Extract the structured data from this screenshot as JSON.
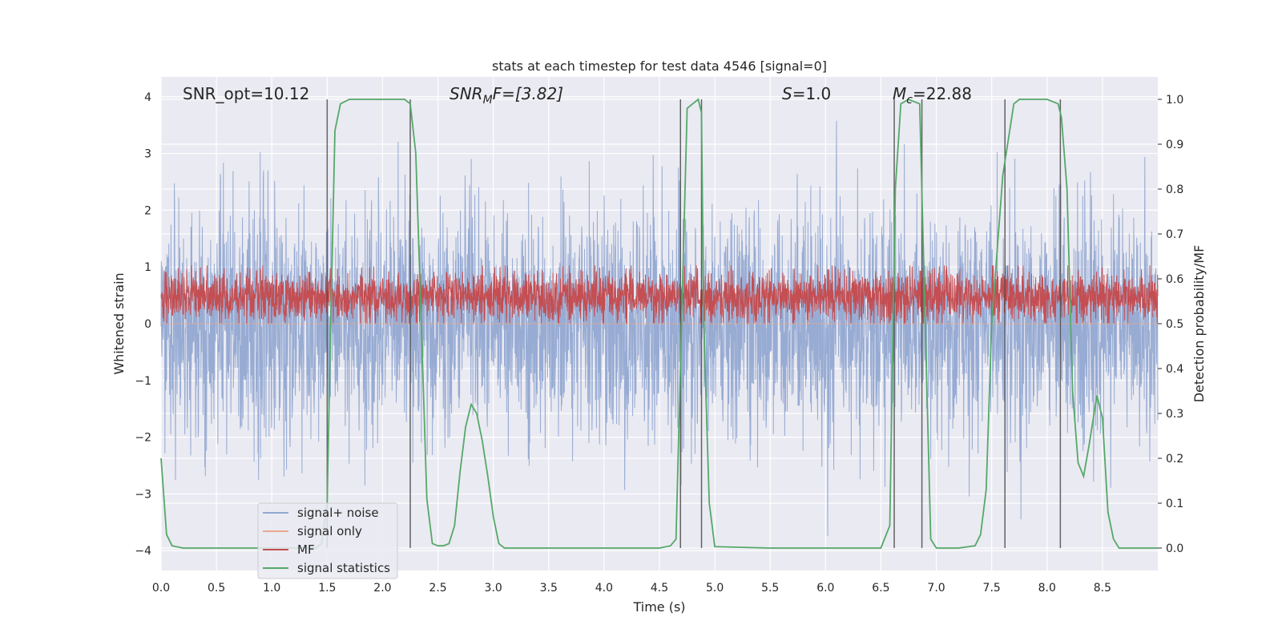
{
  "chart_data": {
    "type": "line",
    "title": "stats at each timestep for test data 4546 [signal=0]",
    "xlabel": "Time (s)",
    "ylabel_left": "Whitened strain",
    "ylabel_right": "Detection probability/MF",
    "xlim": [
      0,
      9.0
    ],
    "ylim_left": [
      -4.35,
      4.35
    ],
    "ylim_right": [
      -0.05,
      1.05
    ],
    "xticks": [
      0.0,
      0.5,
      1.0,
      1.5,
      2.0,
      2.5,
      3.0,
      3.5,
      4.0,
      4.5,
      5.0,
      5.5,
      6.0,
      6.5,
      7.0,
      7.5,
      8.0,
      8.5
    ],
    "xtick_labels": [
      "0.0",
      "0.5",
      "1.0",
      "1.5",
      "2.0",
      "2.5",
      "3.0",
      "3.5",
      "4.0",
      "4.5",
      "5.0",
      "5.5",
      "6.0",
      "6.5",
      "7.0",
      "7.5",
      "8.0",
      "8.5"
    ],
    "yticks_left": [
      -4,
      -3,
      -2,
      -1,
      0,
      1,
      2,
      3,
      4
    ],
    "ytick_labels_left": [
      "−4",
      "−3",
      "−2",
      "−1",
      "0",
      "1",
      "2",
      "3",
      "4"
    ],
    "yticks_right": [
      0.0,
      0.1,
      0.2,
      0.3,
      0.4,
      0.5,
      0.6,
      0.7,
      0.8,
      0.9,
      1.0
    ],
    "ytick_labels_right": [
      "0.0",
      "0.1",
      "0.2",
      "0.3",
      "0.4",
      "0.5",
      "0.6",
      "0.7",
      "0.8",
      "0.9",
      "1.0"
    ],
    "grid": true,
    "legend_position": "lower-left",
    "annotations": {
      "snr_opt": "SNR_opt=10.12",
      "snr_mf_main": "SNR",
      "snr_mf_sub": "M",
      "snr_mf_rest": "F=[3.82]",
      "s_main": "S",
      "s_rest": "=1.0",
      "mc_main": "M",
      "mc_sub": "c",
      "mc_rest": "=22.88"
    },
    "series": [
      {
        "name": "signal+ noise",
        "color": "#92a8d1",
        "axis": "left",
        "kind": "noise",
        "envelope_typical": [
          -1.6,
          1.6
        ],
        "envelope_extreme": [
          -3.9,
          4.0
        ]
      },
      {
        "name": "signal only",
        "color": "#e8a98e",
        "axis": "left",
        "kind": "flat",
        "values": [
          0.0,
          0.0
        ]
      },
      {
        "name": "MF",
        "color": "#c44e52",
        "axis": "right",
        "kind": "noise",
        "envelope_typical": [
          0.52,
          0.6
        ],
        "envelope_extreme": [
          0.5,
          0.63
        ]
      },
      {
        "name": "signal statistics",
        "color": "#55a868",
        "axis": "right",
        "kind": "line",
        "x": [
          0.0,
          0.05,
          0.1,
          0.2,
          0.3,
          0.5,
          1.0,
          1.4,
          1.45,
          1.5,
          1.53,
          1.57,
          1.62,
          1.7,
          2.0,
          2.2,
          2.25,
          2.3,
          2.35,
          2.4,
          2.45,
          2.5,
          2.55,
          2.6,
          2.65,
          2.7,
          2.75,
          2.8,
          2.85,
          2.9,
          2.95,
          3.0,
          3.05,
          3.1,
          3.15,
          3.2,
          3.5,
          4.0,
          4.5,
          4.6,
          4.65,
          4.7,
          4.75,
          4.8,
          4.85,
          4.88,
          4.9,
          4.95,
          5.0,
          5.5,
          6.0,
          6.5,
          6.58,
          6.63,
          6.68,
          6.75,
          6.8,
          6.85,
          6.9,
          6.95,
          7.0,
          7.05,
          7.2,
          7.35,
          7.4,
          7.45,
          7.5,
          7.6,
          7.7,
          7.75,
          7.8,
          8.0,
          8.1,
          8.13,
          8.18,
          8.23,
          8.28,
          8.33,
          8.38,
          8.45,
          8.5,
          8.55,
          8.6,
          8.65,
          8.7,
          9.0
        ],
        "values": [
          0.2,
          0.03,
          0.005,
          0.0,
          0.0,
          0.0,
          0.0,
          0.0,
          0.01,
          0.1,
          0.48,
          0.93,
          0.99,
          1.0,
          1.0,
          1.0,
          0.99,
          0.88,
          0.5,
          0.11,
          0.01,
          0.005,
          0.005,
          0.01,
          0.05,
          0.17,
          0.27,
          0.32,
          0.3,
          0.24,
          0.16,
          0.07,
          0.01,
          0.0,
          0.0,
          0.0,
          0.0,
          0.0,
          0.0,
          0.005,
          0.02,
          0.5,
          0.98,
          0.99,
          1.0,
          0.97,
          0.5,
          0.1,
          0.003,
          0.0,
          0.0,
          0.0,
          0.05,
          0.8,
          0.99,
          1.0,
          0.995,
          0.99,
          0.5,
          0.02,
          0.0,
          0.0,
          0.0,
          0.005,
          0.03,
          0.13,
          0.5,
          0.83,
          0.99,
          1.0,
          1.0,
          1.0,
          0.99,
          0.96,
          0.8,
          0.35,
          0.19,
          0.16,
          0.23,
          0.34,
          0.29,
          0.08,
          0.02,
          0.0,
          0.0,
          0.0
        ]
      }
    ],
    "vlines": [
      1.5,
      2.25,
      4.69,
      4.88,
      6.62,
      6.87,
      7.62,
      8.12
    ]
  }
}
